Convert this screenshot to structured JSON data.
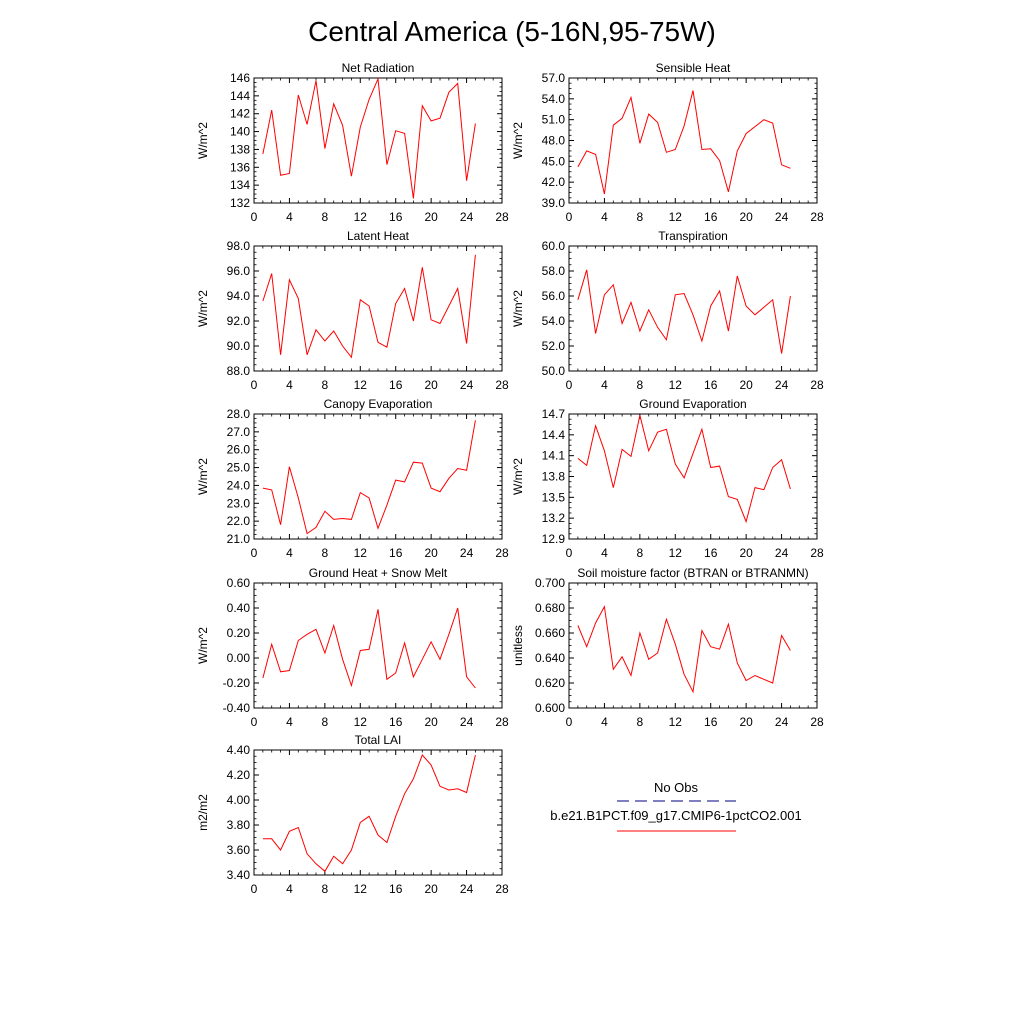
{
  "title": "Central America (5-16N,95-75W)",
  "legend": {
    "obs_label": "No Obs",
    "obs_color": "#000080",
    "model_label": "b.e21.B1PCT.f09_g17.CMIP6-1pctCO2.001",
    "model_color": "#ff0000"
  },
  "chart_data": [
    {
      "type": "line",
      "title": "Net Radiation",
      "ylabel": "W/m^2",
      "xlim": [
        0,
        28
      ],
      "xticks": [
        "0",
        "4",
        "8",
        "12",
        "16",
        "20",
        "24",
        "28"
      ],
      "ylim": [
        132,
        146
      ],
      "yticks": [
        "132",
        "134",
        "136",
        "138",
        "140",
        "142",
        "144",
        "146"
      ],
      "series": [
        {
          "color": "#ff0000",
          "x": [
            1,
            2,
            3,
            4,
            5,
            6,
            7,
            8,
            9,
            10,
            11,
            12,
            13,
            14,
            15,
            16,
            17,
            18,
            19,
            20,
            21,
            22,
            23,
            24,
            25
          ],
          "y": [
            137.5,
            142.4,
            135.1,
            135.3,
            144.1,
            140.8,
            145.7,
            138.1,
            143.1,
            140.7,
            135.0,
            140.5,
            143.6,
            145.9,
            136.3,
            140.1,
            139.8,
            132.5,
            142.9,
            141.2,
            141.5,
            144.4,
            145.4,
            134.5,
            140.9
          ]
        }
      ]
    },
    {
      "type": "line",
      "title": "Sensible Heat",
      "ylabel": "W/m^2",
      "xlim": [
        0,
        28
      ],
      "xticks": [
        "0",
        "4",
        "8",
        "12",
        "16",
        "20",
        "24",
        "28"
      ],
      "ylim": [
        39,
        57
      ],
      "yticks": [
        "39.0",
        "42.0",
        "45.0",
        "48.0",
        "51.0",
        "54.0",
        "57.0"
      ],
      "series": [
        {
          "color": "#ff0000",
          "x": [
            1,
            2,
            3,
            4,
            5,
            6,
            7,
            8,
            9,
            10,
            11,
            12,
            13,
            14,
            15,
            16,
            17,
            18,
            19,
            20,
            21,
            22,
            23,
            24,
            25
          ],
          "y": [
            44.2,
            46.5,
            46.0,
            40.3,
            50.2,
            51.2,
            54.2,
            47.6,
            51.8,
            50.6,
            46.3,
            46.7,
            50.1,
            55.2,
            46.7,
            46.8,
            45.1,
            40.6,
            46.5,
            49.0,
            50.0,
            51.0,
            50.5,
            44.5,
            44.0
          ]
        }
      ]
    },
    {
      "type": "line",
      "title": "Latent Heat",
      "ylabel": "W/m^2",
      "xlim": [
        0,
        28
      ],
      "xticks": [
        "0",
        "4",
        "8",
        "12",
        "16",
        "20",
        "24",
        "28"
      ],
      "ylim": [
        88,
        98
      ],
      "yticks": [
        "88.0",
        "90.0",
        "92.0",
        "94.0",
        "96.0",
        "98.0"
      ],
      "series": [
        {
          "color": "#ff0000",
          "x": [
            1,
            2,
            3,
            4,
            5,
            6,
            7,
            8,
            9,
            10,
            11,
            12,
            13,
            14,
            15,
            16,
            17,
            18,
            19,
            20,
            21,
            22,
            23,
            24,
            25
          ],
          "y": [
            93.6,
            95.8,
            89.3,
            95.3,
            93.8,
            89.3,
            91.3,
            90.4,
            91.2,
            90.0,
            89.1,
            93.7,
            93.2,
            90.3,
            89.9,
            93.4,
            94.6,
            92.0,
            96.3,
            92.1,
            91.8,
            93.2,
            94.6,
            90.2,
            97.3
          ]
        }
      ]
    },
    {
      "type": "line",
      "title": "Transpiration",
      "ylabel": "W/m^2",
      "xlim": [
        0,
        28
      ],
      "xticks": [
        "0",
        "4",
        "8",
        "12",
        "16",
        "20",
        "24",
        "28"
      ],
      "ylim": [
        50,
        60
      ],
      "yticks": [
        "50.0",
        "52.0",
        "54.0",
        "56.0",
        "58.0",
        "60.0"
      ],
      "series": [
        {
          "color": "#ff0000",
          "x": [
            1,
            2,
            3,
            4,
            5,
            6,
            7,
            8,
            9,
            10,
            11,
            12,
            13,
            14,
            15,
            16,
            17,
            18,
            19,
            20,
            21,
            22,
            23,
            24,
            25
          ],
          "y": [
            55.7,
            58.1,
            53.0,
            56.1,
            56.9,
            53.8,
            55.5,
            53.2,
            54.9,
            53.5,
            52.5,
            56.1,
            56.2,
            54.5,
            52.4,
            55.2,
            56.4,
            53.2,
            57.6,
            55.2,
            54.5,
            55.1,
            55.7,
            51.4,
            56.0
          ]
        }
      ]
    },
    {
      "type": "line",
      "title": "Canopy Evaporation",
      "ylabel": "W/m^2",
      "xlim": [
        0,
        28
      ],
      "xticks": [
        "0",
        "4",
        "8",
        "12",
        "16",
        "20",
        "24",
        "28"
      ],
      "ylim": [
        21,
        28
      ],
      "yticks": [
        "21.0",
        "22.0",
        "23.0",
        "24.0",
        "25.0",
        "26.0",
        "27.0",
        "28.0"
      ],
      "series": [
        {
          "color": "#ff0000",
          "x": [
            1,
            2,
            3,
            4,
            5,
            6,
            7,
            8,
            9,
            10,
            11,
            12,
            13,
            14,
            15,
            16,
            17,
            18,
            19,
            20,
            21,
            22,
            23,
            24,
            25
          ],
          "y": [
            23.85,
            23.75,
            21.8,
            25.05,
            23.3,
            21.3,
            21.65,
            22.55,
            22.1,
            22.15,
            22.1,
            23.6,
            23.3,
            21.6,
            22.9,
            24.3,
            24.2,
            25.3,
            25.25,
            23.85,
            23.65,
            24.4,
            24.95,
            24.85,
            27.65
          ]
        }
      ]
    },
    {
      "type": "line",
      "title": "Ground Evaporation",
      "ylabel": "W/m^2",
      "xlim": [
        0,
        28
      ],
      "xticks": [
        "0",
        "4",
        "8",
        "12",
        "16",
        "20",
        "24",
        "28"
      ],
      "ylim": [
        12.9,
        14.7
      ],
      "yticks": [
        "12.9",
        "13.2",
        "13.5",
        "13.8",
        "14.1",
        "14.4",
        "14.7"
      ],
      "series": [
        {
          "color": "#ff0000",
          "x": [
            1,
            2,
            3,
            4,
            5,
            6,
            7,
            8,
            9,
            10,
            11,
            12,
            13,
            14,
            15,
            16,
            17,
            18,
            19,
            20,
            21,
            22,
            23,
            24,
            25
          ],
          "y": [
            14.06,
            13.96,
            14.53,
            14.17,
            13.64,
            14.19,
            14.09,
            14.68,
            14.17,
            14.44,
            14.48,
            13.98,
            13.78,
            14.13,
            14.48,
            13.93,
            13.95,
            13.51,
            13.47,
            13.15,
            13.64,
            13.61,
            13.93,
            14.04,
            13.62
          ]
        }
      ]
    },
    {
      "type": "line",
      "title": "Ground Heat + Snow Melt",
      "ylabel": "W/m^2",
      "xlim": [
        0,
        28
      ],
      "xticks": [
        "0",
        "4",
        "8",
        "12",
        "16",
        "20",
        "24",
        "28"
      ],
      "ylim": [
        -0.4,
        0.6
      ],
      "yticks": [
        "-0.40",
        "-0.20",
        "0.00",
        "0.20",
        "0.40",
        "0.60"
      ],
      "series": [
        {
          "color": "#ff0000",
          "x": [
            1,
            2,
            3,
            4,
            5,
            6,
            7,
            8,
            9,
            10,
            11,
            12,
            13,
            14,
            15,
            16,
            17,
            18,
            19,
            20,
            21,
            22,
            23,
            24,
            25
          ],
          "y": [
            -0.16,
            0.11,
            -0.11,
            -0.1,
            0.14,
            0.19,
            0.23,
            0.04,
            0.26,
            -0.01,
            -0.22,
            0.06,
            0.07,
            0.39,
            -0.17,
            -0.12,
            0.12,
            -0.15,
            -0.01,
            0.13,
            -0.01,
            0.19,
            0.4,
            -0.15,
            -0.24
          ]
        }
      ]
    },
    {
      "type": "line",
      "title": "Soil moisture factor (BTRAN or BTRANMN)",
      "ylabel": "unitless",
      "xlim": [
        0,
        28
      ],
      "xticks": [
        "0",
        "4",
        "8",
        "12",
        "16",
        "20",
        "24",
        "28"
      ],
      "ylim": [
        0.6,
        0.7
      ],
      "yticks": [
        "0.600",
        "0.620",
        "0.640",
        "0.660",
        "0.680",
        "0.700"
      ],
      "series": [
        {
          "color": "#ff0000",
          "x": [
            1,
            2,
            3,
            4,
            5,
            6,
            7,
            8,
            9,
            10,
            11,
            12,
            13,
            14,
            15,
            16,
            17,
            18,
            19,
            20,
            21,
            22,
            23,
            24,
            25
          ],
          "y": [
            0.666,
            0.649,
            0.668,
            0.681,
            0.631,
            0.641,
            0.626,
            0.66,
            0.639,
            0.644,
            0.671,
            0.651,
            0.627,
            0.613,
            0.662,
            0.649,
            0.647,
            0.667,
            0.636,
            0.622,
            0.626,
            0.623,
            0.62,
            0.658,
            0.646
          ]
        }
      ]
    },
    {
      "type": "line",
      "title": "Total LAI",
      "ylabel": "m2/m2",
      "xlim": [
        0,
        28
      ],
      "xticks": [
        "0",
        "4",
        "8",
        "12",
        "16",
        "20",
        "24",
        "28"
      ],
      "ylim": [
        3.4,
        4.4
      ],
      "yticks": [
        "3.40",
        "3.60",
        "3.80",
        "4.00",
        "4.20",
        "4.40"
      ],
      "series": [
        {
          "color": "#ff0000",
          "x": [
            1,
            2,
            3,
            4,
            5,
            6,
            7,
            8,
            9,
            10,
            11,
            12,
            13,
            14,
            15,
            16,
            17,
            18,
            19,
            20,
            21,
            22,
            23,
            24,
            25
          ],
          "y": [
            3.69,
            3.69,
            3.6,
            3.75,
            3.78,
            3.57,
            3.49,
            3.43,
            3.55,
            3.49,
            3.6,
            3.82,
            3.87,
            3.72,
            3.66,
            3.87,
            4.05,
            4.17,
            4.36,
            4.28,
            4.11,
            4.08,
            4.09,
            4.06,
            4.36
          ]
        }
      ]
    }
  ]
}
